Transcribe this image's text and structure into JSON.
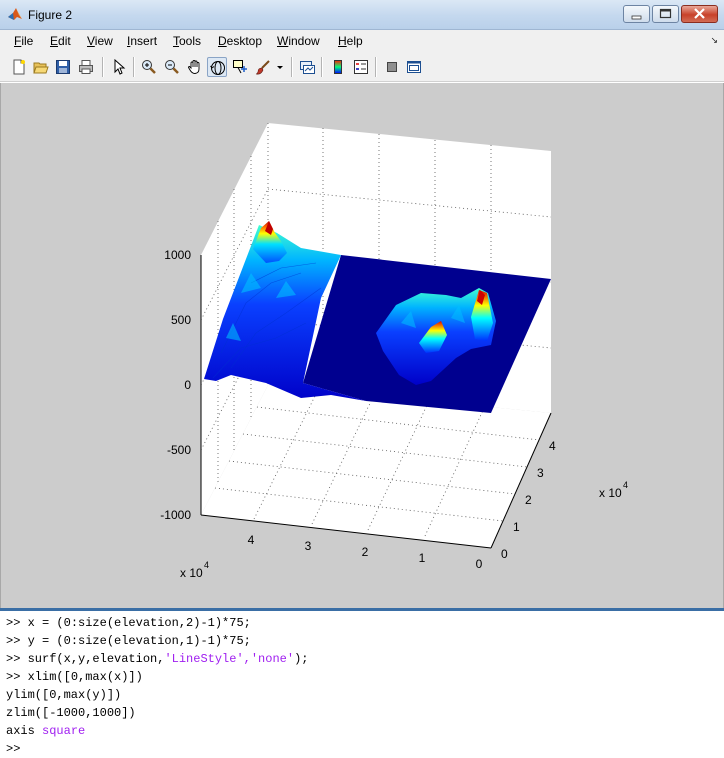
{
  "window": {
    "title": "Figure 2"
  },
  "menu": [
    {
      "label": "File",
      "key": "F",
      "rest": "ile"
    },
    {
      "label": "Edit",
      "key": "E",
      "rest": "dit"
    },
    {
      "label": "View",
      "key": "V",
      "rest": "iew"
    },
    {
      "label": "Insert",
      "key": "I",
      "rest": "nsert"
    },
    {
      "label": "Tools",
      "key": "T",
      "rest": "ools"
    },
    {
      "label": "Desktop",
      "key": "D",
      "rest": "esktop"
    },
    {
      "label": "Window",
      "key": "W",
      "rest": "indow"
    },
    {
      "label": "Help",
      "key": "H",
      "rest": "elp"
    }
  ],
  "toolbar": {
    "buttons": [
      "new-figure",
      "open-file",
      "save",
      "print",
      "edit-plot",
      "zoom-in",
      "zoom-out",
      "pan",
      "rotate-3d",
      "data-cursor",
      "brush",
      "brush-dropdown",
      "link-plot",
      "insert-colorbar",
      "insert-legend",
      "hide-plot-tools",
      "show-plot-tools"
    ],
    "active": "rotate-3d"
  },
  "plot": {
    "z_ticks": [
      "1000",
      "500",
      "0",
      "-500",
      "-1000"
    ],
    "x_ticks": [
      "4",
      "3",
      "2",
      "1",
      "0"
    ],
    "y_ticks": [
      "0",
      "1",
      "2",
      "3",
      "4"
    ],
    "x_multiplier": "x 10",
    "x_exponent": "4",
    "y_multiplier": "x 10",
    "y_exponent": "4",
    "colormap": [
      "#00008f",
      "#0000ff",
      "#0080ff",
      "#00ffff",
      "#80ff80",
      "#ffff00",
      "#ff8000",
      "#ff0000",
      "#800000"
    ],
    "figure_bg": "#cccccc"
  },
  "console": {
    "prompt": ">>",
    "lines": [
      {
        "prompt": ">> ",
        "code": "x = (0:size(elevation,2)-1)*75;",
        "str": "",
        "tail": ""
      },
      {
        "prompt": ">> ",
        "code": "y = (0:size(elevation,1)-1)*75;",
        "str": "",
        "tail": ""
      },
      {
        "prompt": ">> ",
        "code": "surf(x,y,elevation,",
        "str": "'LineStyle','none'",
        "tail": ");"
      },
      {
        "prompt": ">> ",
        "code": "xlim([0,max(x)])",
        "str": "",
        "tail": ""
      },
      {
        "prompt": "",
        "code": "ylim([0,max(y)])",
        "str": "",
        "tail": ""
      },
      {
        "prompt": "",
        "code": "zlim([-1000,1000])",
        "str": "",
        "tail": ""
      },
      {
        "prompt": "",
        "code": "axis ",
        "str": "square",
        "tail": ""
      },
      {
        "prompt": ">>",
        "code": "",
        "str": "",
        "tail": ""
      }
    ]
  }
}
